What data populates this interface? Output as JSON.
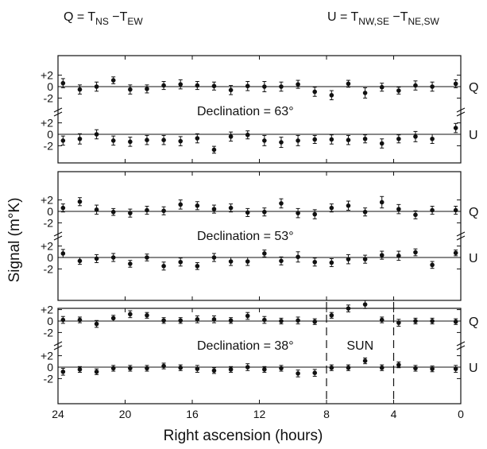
{
  "header": {
    "q_definition": {
      "prefix": "Q = T",
      "sub1": "NS",
      "mid": " −T",
      "sub2": "EW"
    },
    "u_definition": {
      "prefix": "U = T",
      "sub1": "NW,SE",
      "mid": " −T",
      "sub2": "NE,SW"
    }
  },
  "axes": {
    "xlabel": "Right ascension (hours)",
    "ylabel": "Signal (m°K)",
    "x_ticks": [
      "24",
      "20",
      "16",
      "12",
      "8",
      "4",
      "0"
    ],
    "y_ticks_pos": [
      "+2",
      "0",
      "-2"
    ]
  },
  "colors": {
    "ink": "#111111",
    "background": "#ffffff"
  },
  "chart_data": {
    "type": "scatter",
    "x_axis": {
      "label": "Right ascension (hours)",
      "range": [
        24,
        0
      ],
      "reversed": true,
      "ticks": [
        24,
        20,
        16,
        12,
        8,
        4,
        0
      ]
    },
    "y_axis": {
      "label": "Signal (m°K)",
      "ticks": [
        2,
        0,
        -2
      ]
    },
    "grid": false,
    "panels": [
      {
        "declination_label": "Declination = 63°",
        "series": [
          {
            "name": "Q",
            "x": [
              23.7,
              22.7,
              21.7,
              20.7,
              19.7,
              18.7,
              17.7,
              16.7,
              15.7,
              14.7,
              13.7,
              12.7,
              11.7,
              10.7,
              9.7,
              8.7,
              7.7,
              6.7,
              5.7,
              4.7,
              3.7,
              2.7,
              1.7,
              0.3
            ],
            "y": [
              0.6,
              -0.5,
              0.0,
              1.1,
              -0.5,
              -0.4,
              0.2,
              0.4,
              0.2,
              0.1,
              -0.6,
              0.1,
              0.0,
              0.0,
              0.4,
              -0.9,
              -1.5,
              0.5,
              -1.1,
              -0.1,
              -0.7,
              0.2,
              0.0,
              0.5
            ],
            "err": [
              0.8,
              0.8,
              0.8,
              0.6,
              0.8,
              0.7,
              0.7,
              0.8,
              0.7,
              0.7,
              0.8,
              0.8,
              0.9,
              0.8,
              0.7,
              0.8,
              0.8,
              0.6,
              0.9,
              0.7,
              0.6,
              0.8,
              0.8,
              0.7
            ]
          },
          {
            "name": "U",
            "x": [
              23.7,
              22.7,
              21.7,
              20.7,
              19.7,
              18.7,
              17.7,
              16.7,
              15.7,
              14.7,
              13.7,
              12.7,
              11.7,
              10.7,
              9.7,
              8.7,
              7.7,
              6.7,
              5.7,
              4.7,
              3.7,
              2.7,
              1.7,
              0.3
            ],
            "y": [
              -1.1,
              -0.8,
              0.0,
              -1.1,
              -1.3,
              -1.0,
              -1.0,
              -1.2,
              -0.7,
              -2.7,
              -0.4,
              -0.1,
              -1.1,
              -1.4,
              -1.1,
              -0.9,
              -0.9,
              -1.0,
              -0.8,
              -1.6,
              -0.8,
              -0.4,
              -0.8,
              1.1
            ],
            "err": [
              0.8,
              0.9,
              0.8,
              0.8,
              0.8,
              0.8,
              0.8,
              0.8,
              0.8,
              0.6,
              0.8,
              0.7,
              0.9,
              0.9,
              0.9,
              0.7,
              0.8,
              0.8,
              0.7,
              0.8,
              0.7,
              0.9,
              0.8,
              0.8
            ]
          }
        ]
      },
      {
        "declination_label": "Declination = 53°",
        "series": [
          {
            "name": "Q",
            "x": [
              23.7,
              22.7,
              21.7,
              20.7,
              19.7,
              18.7,
              17.7,
              16.7,
              15.7,
              14.7,
              13.7,
              12.7,
              11.7,
              10.7,
              9.7,
              8.7,
              7.7,
              6.7,
              5.7,
              4.7,
              3.7,
              2.7,
              1.7,
              0.3
            ],
            "y": [
              0.6,
              1.7,
              0.3,
              -0.1,
              -0.3,
              0.2,
              0.1,
              1.2,
              1.0,
              0.4,
              0.6,
              -0.2,
              -0.1,
              1.4,
              -0.3,
              -0.5,
              0.6,
              1.0,
              -0.1,
              1.6,
              0.4,
              -0.6,
              0.2,
              0.2
            ],
            "err": [
              0.7,
              0.7,
              0.8,
              0.6,
              0.7,
              0.7,
              0.7,
              0.8,
              0.7,
              0.7,
              0.7,
              0.7,
              0.7,
              0.8,
              0.8,
              0.8,
              0.7,
              0.8,
              0.7,
              1.0,
              0.8,
              0.7,
              0.7,
              0.7
            ]
          },
          {
            "name": "U",
            "x": [
              23.7,
              22.7,
              21.7,
              20.7,
              19.7,
              18.7,
              17.7,
              16.7,
              15.7,
              14.7,
              13.7,
              12.7,
              11.7,
              10.7,
              9.7,
              8.7,
              7.7,
              6.7,
              5.7,
              4.7,
              3.7,
              2.7,
              1.7,
              0.3
            ],
            "y": [
              0.7,
              -0.6,
              -0.2,
              0.0,
              -1.1,
              0.0,
              -1.5,
              -0.8,
              -1.5,
              0.0,
              -0.7,
              -0.7,
              0.7,
              -0.6,
              0.1,
              -0.8,
              -0.9,
              -0.3,
              -0.3,
              0.4,
              0.3,
              0.9,
              -1.3,
              0.8
            ],
            "err": [
              0.7,
              0.6,
              0.7,
              0.7,
              0.6,
              0.6,
              0.7,
              0.7,
              0.6,
              0.7,
              0.7,
              0.7,
              0.6,
              0.7,
              0.9,
              0.7,
              0.7,
              0.8,
              0.7,
              0.7,
              0.8,
              0.6,
              0.6,
              0.5
            ]
          }
        ]
      },
      {
        "declination_label": "Declination = 38°",
        "annotation": "SUN",
        "sun_lines_ra": [
          8,
          4
        ],
        "series": [
          {
            "name": "Q",
            "x": [
              23.7,
              22.7,
              21.7,
              20.7,
              19.7,
              18.7,
              17.7,
              16.7,
              15.7,
              14.7,
              13.7,
              12.7,
              11.7,
              10.7,
              9.7,
              8.7,
              7.7,
              6.7,
              5.7,
              4.7,
              3.7,
              2.7,
              1.7,
              0.3
            ],
            "y": [
              0.2,
              0.2,
              -0.5,
              0.5,
              1.2,
              1.0,
              0.1,
              0.1,
              0.3,
              0.3,
              0.1,
              0.9,
              0.2,
              0.0,
              0.1,
              -0.1,
              1.0,
              2.2,
              2.9,
              0.2,
              -0.3,
              0.0,
              0.0,
              -0.1
            ],
            "err": [
              0.6,
              0.5,
              0.6,
              0.5,
              0.6,
              0.5,
              0.5,
              0.5,
              0.6,
              0.6,
              0.5,
              0.6,
              0.6,
              0.5,
              0.6,
              0.5,
              0.5,
              0.6,
              0.7,
              0.5,
              0.6,
              0.5,
              0.5,
              0.5
            ]
          },
          {
            "name": "U",
            "x": [
              23.7,
              22.7,
              21.7,
              20.7,
              19.7,
              18.7,
              17.7,
              16.7,
              15.7,
              14.7,
              13.7,
              12.7,
              11.7,
              10.7,
              9.7,
              8.7,
              7.7,
              6.7,
              5.7,
              4.7,
              3.7,
              2.7,
              1.7,
              0.3
            ],
            "y": [
              -0.8,
              -0.4,
              -0.8,
              -0.2,
              -0.2,
              -0.2,
              0.2,
              -0.1,
              -0.3,
              -0.6,
              -0.4,
              0.0,
              -0.4,
              -0.2,
              -1.1,
              -1.0,
              -0.1,
              -0.1,
              1.1,
              -0.1,
              0.4,
              -0.2,
              -0.3,
              -0.3
            ],
            "err": [
              0.6,
              0.5,
              0.5,
              0.5,
              0.5,
              0.5,
              0.5,
              0.5,
              0.6,
              0.5,
              0.5,
              0.6,
              0.5,
              0.5,
              0.6,
              0.6,
              0.5,
              0.5,
              0.5,
              0.5,
              0.5,
              0.5,
              0.5,
              0.6
            ]
          }
        ]
      }
    ]
  }
}
